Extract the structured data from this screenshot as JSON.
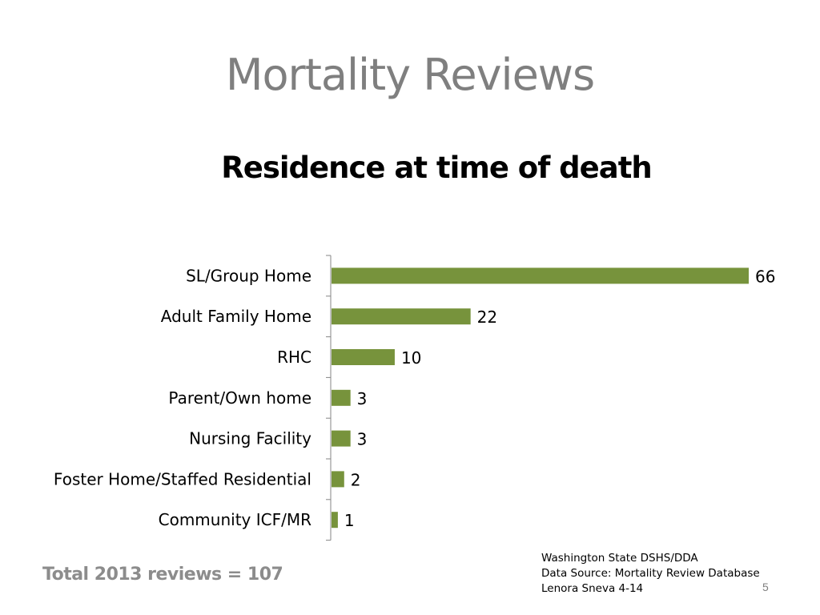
{
  "slide": {
    "title": "Mortality Reviews",
    "total_note": "Total 2013 reviews = 107",
    "source_lines": [
      "Washington State DSHS/DDA",
      "Data Source: Mortality Review Database",
      "Lenora Sneva 4-14"
    ],
    "page_number": "5"
  },
  "chart_data": {
    "type": "bar",
    "orientation": "horizontal",
    "title": "Residence at time of death",
    "categories": [
      "SL/Group Home",
      "Adult Family Home",
      "RHC",
      "Parent/Own home",
      "Nursing Facility",
      "Foster Home/Staffed Residential",
      "Community ICF/MR"
    ],
    "values": [
      66,
      22,
      10,
      3,
      3,
      2,
      1
    ],
    "xlim": [
      0,
      66
    ],
    "grid": false,
    "legend": "none",
    "bar_color": "#77933c",
    "axis_color": "#868686"
  }
}
